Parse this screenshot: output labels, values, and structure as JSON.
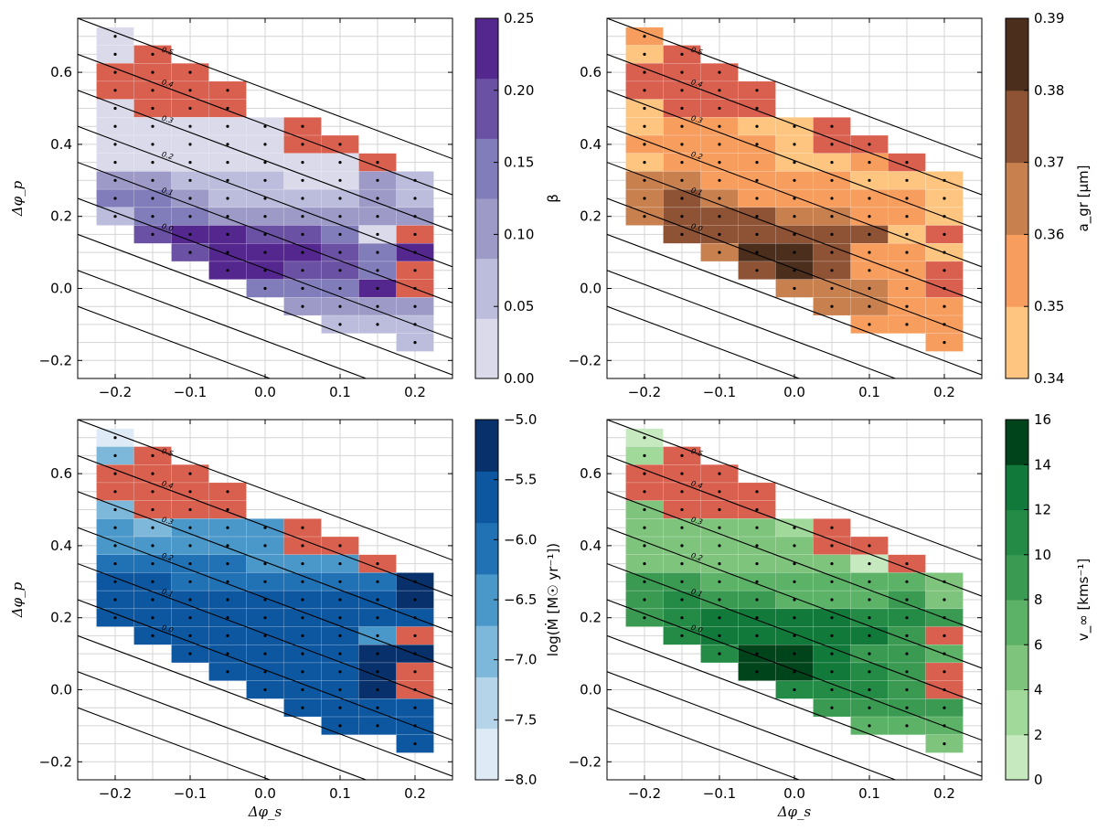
{
  "chart_data": [
    {
      "type": "heatmap",
      "panel": "top-left",
      "xlabel": "",
      "ylabel": "Δφ_p",
      "xlim": [
        -0.25,
        0.25
      ],
      "ylim": [
        -0.25,
        0.75
      ],
      "xticks": [
        "−0.2",
        "−0.1",
        "0.0",
        "0.1",
        "0.2"
      ],
      "yticks": [
        "−0.2",
        "0.0",
        "0.2",
        "0.4",
        "0.6"
      ],
      "colorbar": {
        "label": "β",
        "ticks": [
          "0.00",
          "0.05",
          "0.10",
          "0.15",
          "0.20",
          "0.25"
        ],
        "range": [
          0.0,
          0.25
        ],
        "colors": [
          "#dadaeb",
          "#bcbddc",
          "#9e9ac8",
          "#807dba",
          "#6a51a3",
          "#54278f"
        ]
      },
      "contour_labels": [
        "0.5",
        "0.4",
        "0.3",
        "0.2",
        "0.1",
        "0.0"
      ]
    },
    {
      "type": "heatmap",
      "panel": "top-right",
      "xlabel": "",
      "ylabel": "",
      "xlim": [
        -0.25,
        0.25
      ],
      "ylim": [
        -0.25,
        0.75
      ],
      "xticks": [
        "−0.2",
        "−0.1",
        "0.0",
        "0.1",
        "0.2"
      ],
      "yticks": [
        "−0.2",
        "0.0",
        "0.2",
        "0.4",
        "0.6"
      ],
      "colorbar": {
        "label": "a_gr [μm]",
        "ticks": [
          "0.34",
          "0.35",
          "0.36",
          "0.37",
          "0.38",
          "0.39"
        ],
        "range": [
          0.34,
          0.39
        ],
        "colors": [
          "#fdc57f",
          "#f79d5e",
          "#c8804f",
          "#8e5234",
          "#4b2e1c"
        ]
      },
      "contour_labels": [
        "0.5",
        "0.4",
        "0.3",
        "0.2",
        "0.1",
        "0.0"
      ]
    },
    {
      "type": "heatmap",
      "panel": "bottom-left",
      "xlabel": "Δφ_s",
      "ylabel": "Δφ_p",
      "xlim": [
        -0.25,
        0.25
      ],
      "ylim": [
        -0.25,
        0.75
      ],
      "xticks": [
        "−0.2",
        "−0.1",
        "0.0",
        "0.1",
        "0.2"
      ],
      "yticks": [
        "−0.2",
        "0.0",
        "0.2",
        "0.4",
        "0.6"
      ],
      "colorbar": {
        "label": "log(Ṁ [M☉ yr⁻¹])",
        "ticks": [
          "−8.0",
          "−7.5",
          "−7.0",
          "−6.5",
          "−6.0",
          "−5.5",
          "−5.0"
        ],
        "range": [
          -8.0,
          -5.0
        ],
        "colors": [
          "#deebf7",
          "#b5d4e9",
          "#7db8da",
          "#4a98c9",
          "#2171b5",
          "#0d57a1",
          "#08306b"
        ]
      },
      "contour_labels": [
        "0.5",
        "0.4",
        "0.3",
        "0.2",
        "0.1",
        "0.0"
      ]
    },
    {
      "type": "heatmap",
      "panel": "bottom-right",
      "xlabel": "Δφ_s",
      "ylabel": "",
      "xlim": [
        -0.25,
        0.25
      ],
      "ylim": [
        -0.25,
        0.75
      ],
      "xticks": [
        "−0.2",
        "−0.1",
        "0.0",
        "0.1",
        "0.2"
      ],
      "yticks": [
        "−0.2",
        "0.0",
        "0.2",
        "0.4",
        "0.6"
      ],
      "colorbar": {
        "label": "v_∞ [kms⁻¹]",
        "ticks": [
          "0",
          "2",
          "4",
          "6",
          "8",
          "10",
          "12",
          "14",
          "16"
        ],
        "range": [
          0,
          16
        ],
        "colors": [
          "#c7e9c0",
          "#a1d99b",
          "#7fc47c",
          "#5cb266",
          "#3a9a52",
          "#238b45",
          "#117a3a",
          "#00441b"
        ]
      },
      "contour_labels": [
        "0.5",
        "0.4",
        "0.3",
        "0.2",
        "0.1",
        "0.0"
      ]
    }
  ]
}
